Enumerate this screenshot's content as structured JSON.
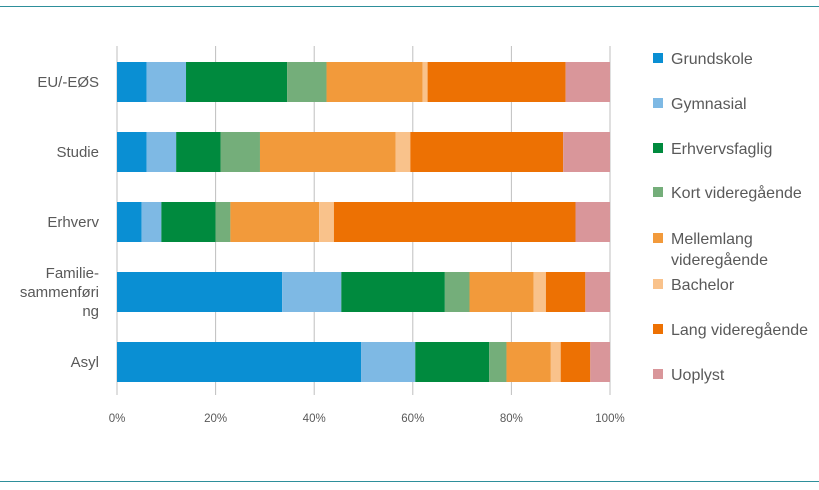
{
  "colors": {
    "frame": "#2e8f9b",
    "grid": "#bfbfbf",
    "text": "#595959"
  },
  "chart_data": {
    "type": "bar",
    "orientation": "horizontal",
    "stacked": "percent",
    "title": "",
    "xlabel": "",
    "ylabel": "",
    "xlim": [
      0,
      100
    ],
    "x_ticks": [
      "0%",
      "20%",
      "40%",
      "60%",
      "80%",
      "100%"
    ],
    "grid": true,
    "legend_position": "right",
    "categories": [
      {
        "id": "eu",
        "lines": [
          "EU/-EØS"
        ]
      },
      {
        "id": "studie",
        "lines": [
          "Studie"
        ]
      },
      {
        "id": "erhverv",
        "lines": [
          "Erhverv"
        ]
      },
      {
        "id": "familie",
        "lines": [
          "Familie-",
          "sammenføri",
          "ng"
        ]
      },
      {
        "id": "asyl",
        "lines": [
          "Asyl"
        ]
      }
    ],
    "series": [
      {
        "name": "Grundskole",
        "lines": [
          "Grundskole"
        ],
        "color": "#0a8fd3",
        "values": [
          6,
          6,
          5,
          33.5,
          49.5
        ]
      },
      {
        "name": "Gymnasial",
        "lines": [
          "Gymnasial"
        ],
        "color": "#7eb9e4",
        "values": [
          8,
          6,
          4,
          12,
          11
        ]
      },
      {
        "name": "Erhvervsfaglig",
        "lines": [
          "Erhvervsfaglig"
        ],
        "color": "#008a3e",
        "values": [
          20.5,
          9,
          11,
          21,
          15
        ]
      },
      {
        "name": "Kort videregående",
        "lines": [
          "Kort videregående"
        ],
        "color": "#74ae7a",
        "values": [
          8,
          8,
          3,
          5,
          3.5
        ]
      },
      {
        "name": "Mellemlang videregående",
        "lines": [
          "Mellemlang",
          "videregående"
        ],
        "color": "#f29a3b",
        "values": [
          19.5,
          27.5,
          18,
          13,
          9
        ]
      },
      {
        "name": "Bachelor",
        "lines": [
          "Bachelor"
        ],
        "color": "#f9c28b",
        "values": [
          1,
          3,
          3,
          2.5,
          2
        ]
      },
      {
        "name": "Lang videregående",
        "lines": [
          "Lang videregående"
        ],
        "color": "#ed7103",
        "values": [
          28,
          31,
          49,
          8,
          6
        ]
      },
      {
        "name": "Uoplyst",
        "lines": [
          "Uoplyst"
        ],
        "color": "#d9969a",
        "values": [
          9,
          9.5,
          7,
          5,
          4
        ]
      }
    ]
  }
}
